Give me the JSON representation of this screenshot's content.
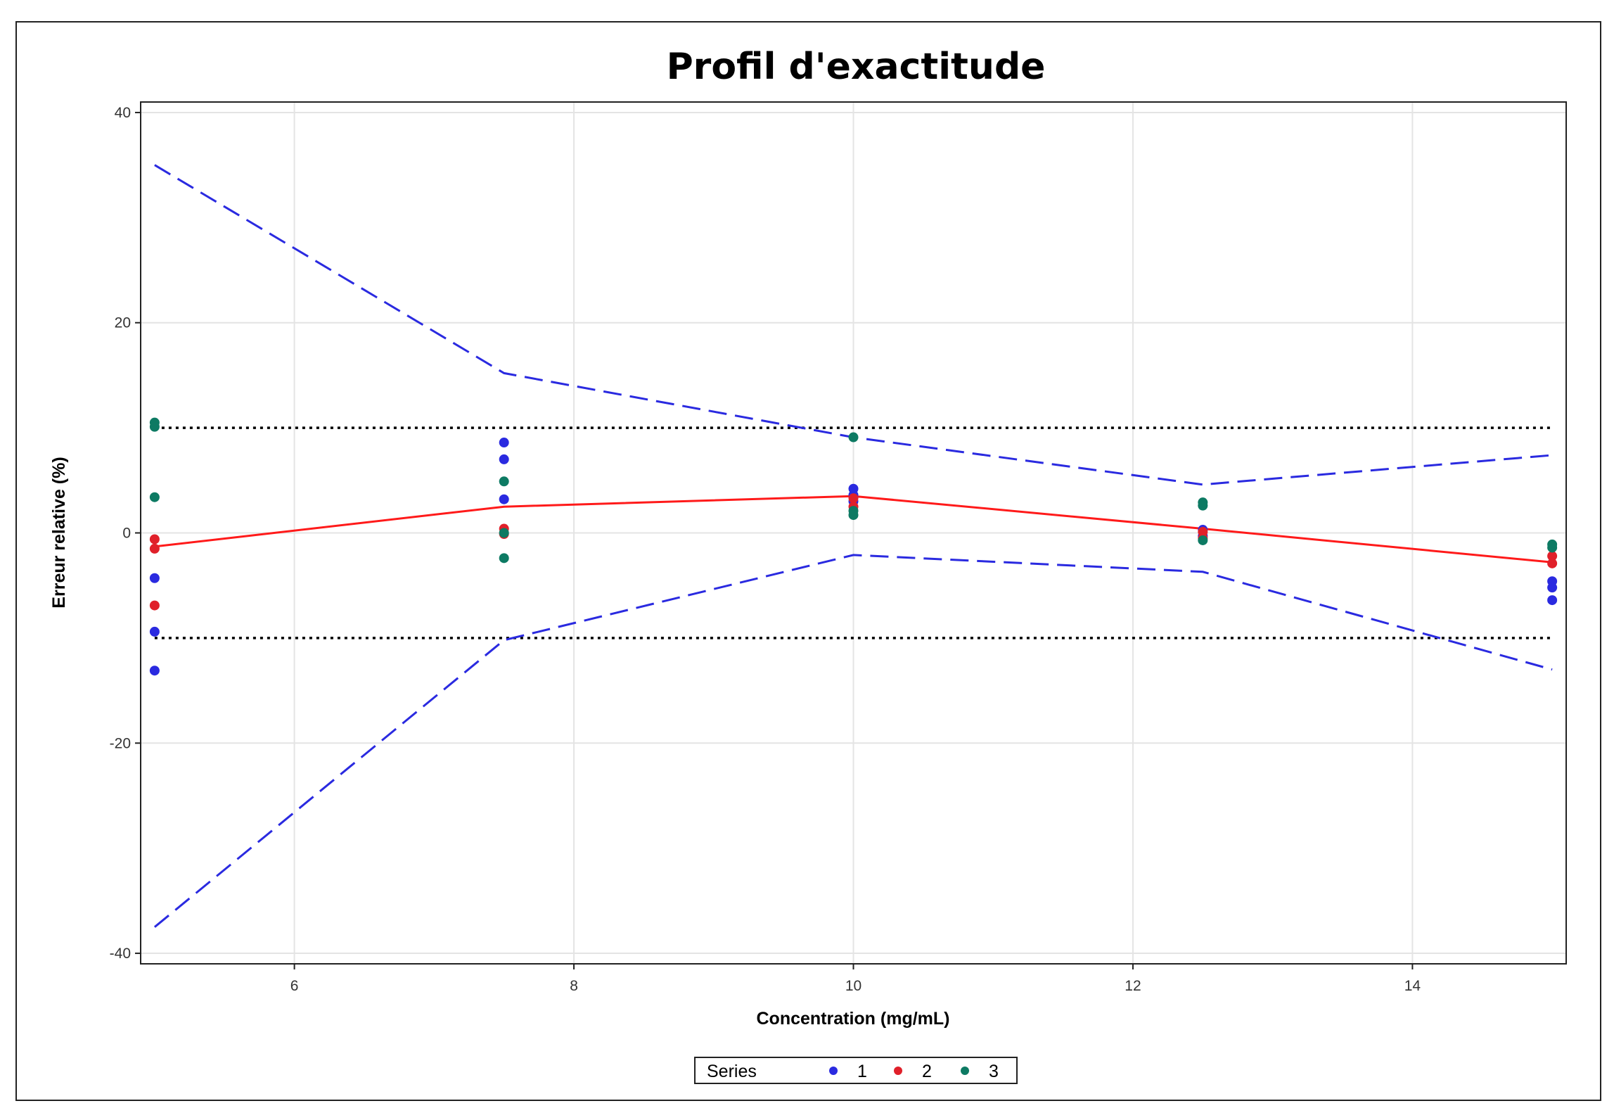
{
  "chart_data": {
    "type": "scatter",
    "title": "Profil d'exactitude",
    "xlabel": "Concentration (mg/mL)",
    "ylabel": "Erreur relative (%)",
    "xlim": [
      4.9,
      15.1
    ],
    "ylim": [
      -41,
      41
    ],
    "xticks": [
      6,
      8,
      10,
      12,
      14
    ],
    "yticks": [
      -40,
      -20,
      0,
      20,
      40
    ],
    "grid": true,
    "legend": {
      "title": "Series",
      "position": "bottom-center",
      "entries": [
        {
          "label": "1",
          "color": "#2a2ae0"
        },
        {
          "label": "2",
          "color": "#e0202a"
        },
        {
          "label": "3",
          "color": "#0d7a63"
        }
      ]
    },
    "series": [
      {
        "name": "1",
        "color": "#2a2ae0",
        "points": [
          [
            5,
            -4.3
          ],
          [
            5,
            -9.4
          ],
          [
            5,
            -13.1
          ],
          [
            7.5,
            8.6
          ],
          [
            7.5,
            7.0
          ],
          [
            7.5,
            3.2
          ],
          [
            10,
            4.2
          ],
          [
            10,
            3.6
          ],
          [
            10,
            3.0
          ],
          [
            12.5,
            0.3
          ],
          [
            12.5,
            -0.3
          ],
          [
            15,
            -4.6
          ],
          [
            15,
            -5.2
          ],
          [
            15,
            -6.4
          ]
        ]
      },
      {
        "name": "2",
        "color": "#e0202a",
        "points": [
          [
            5,
            -0.6
          ],
          [
            5,
            -1.5
          ],
          [
            5,
            -6.9
          ],
          [
            7.5,
            0.4
          ],
          [
            7.5,
            -0.1
          ],
          [
            10,
            3.3
          ],
          [
            10,
            2.5
          ],
          [
            12.5,
            0.1
          ],
          [
            12.5,
            -0.5
          ],
          [
            15,
            -2.2
          ],
          [
            15,
            -2.9
          ]
        ]
      },
      {
        "name": "3",
        "color": "#0d7a63",
        "points": [
          [
            5,
            10.5
          ],
          [
            5,
            10.1
          ],
          [
            5,
            3.4
          ],
          [
            7.5,
            4.9
          ],
          [
            7.5,
            0.0
          ],
          [
            7.5,
            -2.4
          ],
          [
            10,
            9.1
          ],
          [
            10,
            2.1
          ],
          [
            10,
            1.7
          ],
          [
            12.5,
            2.9
          ],
          [
            12.5,
            2.6
          ],
          [
            12.5,
            -0.7
          ],
          [
            15,
            -1.1
          ],
          [
            15,
            -1.4
          ]
        ]
      }
    ],
    "lines": [
      {
        "role": "upper-limit",
        "color": "#2a2ae0",
        "style": "dashed",
        "points": [
          [
            5,
            35
          ],
          [
            7.5,
            15.2
          ],
          [
            10,
            9.1
          ],
          [
            12.5,
            4.6
          ],
          [
            15,
            7.4
          ]
        ]
      },
      {
        "role": "mean-bias",
        "color": "#ff1a1a",
        "style": "solid",
        "points": [
          [
            5,
            -1.3
          ],
          [
            7.5,
            2.5
          ],
          [
            10,
            3.5
          ],
          [
            12.5,
            0.4
          ],
          [
            15,
            -2.8
          ]
        ]
      },
      {
        "role": "lower-limit",
        "color": "#2a2ae0",
        "style": "dashed",
        "points": [
          [
            5,
            -37.5
          ],
          [
            7.5,
            -10.2
          ],
          [
            10,
            -2.1
          ],
          [
            12.5,
            -3.7
          ],
          [
            15,
            -13
          ]
        ]
      },
      {
        "role": "acceptance-upper",
        "color": "#000000",
        "style": "dotted",
        "points": [
          [
            5,
            10
          ],
          [
            15,
            10
          ]
        ]
      },
      {
        "role": "acceptance-lower",
        "color": "#000000",
        "style": "dotted",
        "points": [
          [
            5,
            -10
          ],
          [
            15,
            -10
          ]
        ]
      }
    ]
  }
}
